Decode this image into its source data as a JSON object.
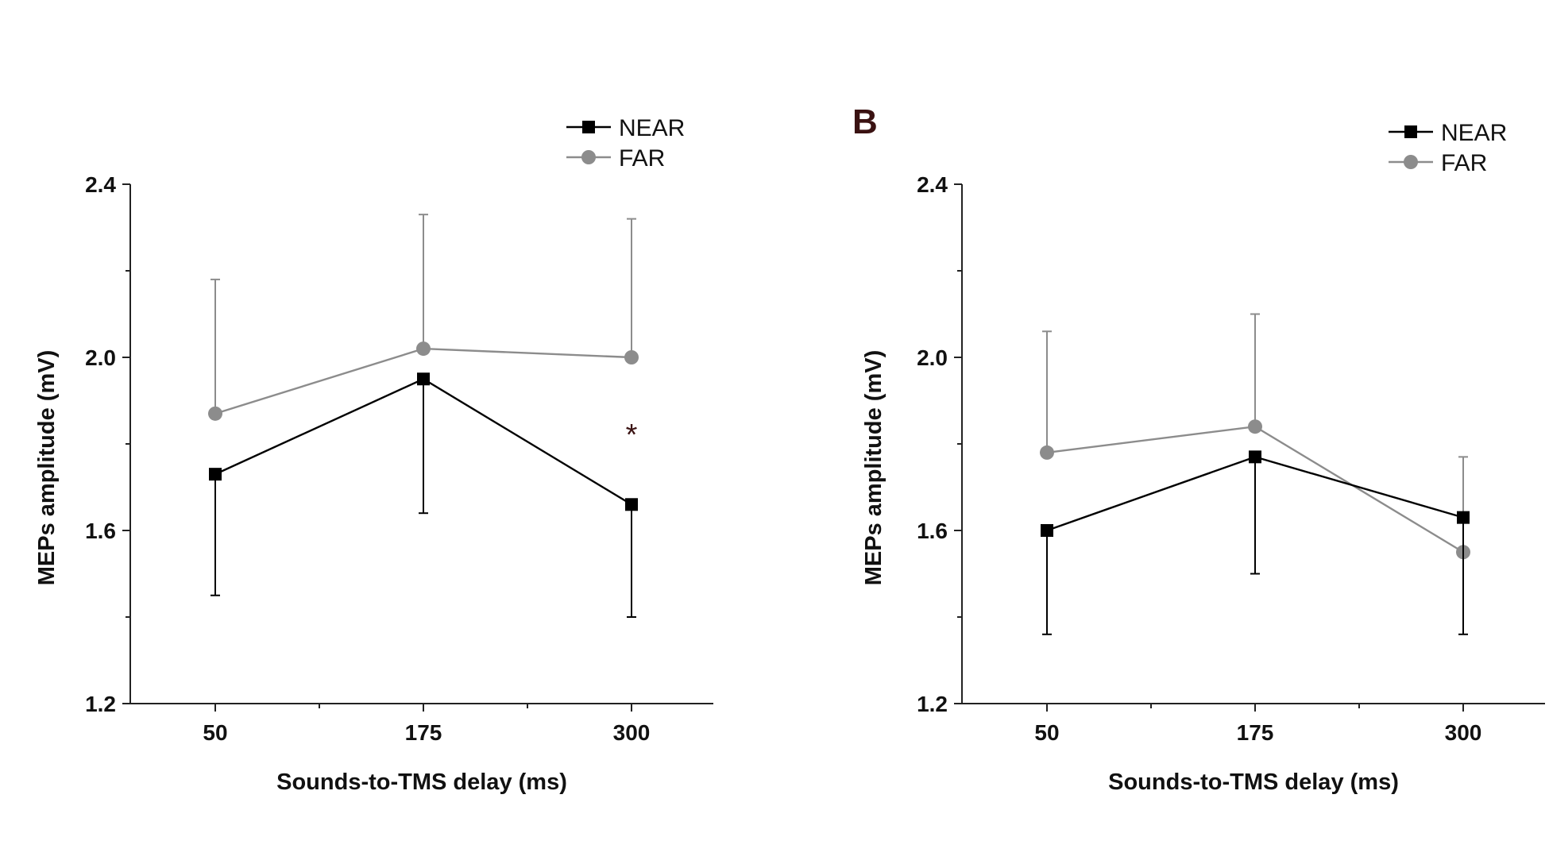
{
  "panels": {
    "a": {
      "label": ""
    },
    "b": {
      "label": "B"
    }
  },
  "chart_data": [
    {
      "type": "line",
      "title": "",
      "xlabel": "Sounds-to-TMS delay (ms)",
      "ylabel": "MEPs amplitude (mV)",
      "categories": [
        "50",
        "175",
        "300"
      ],
      "ylim": [
        1.2,
        2.4
      ],
      "yticks": [
        "1.2",
        "1.6",
        "2.0",
        "2.4"
      ],
      "grid": false,
      "legend": "top-right",
      "annotations": [
        {
          "text": "*",
          "category": "300",
          "y": 1.82
        }
      ],
      "series": [
        {
          "name": "NEAR",
          "color": "#000000",
          "marker": "square",
          "values": [
            1.73,
            1.95,
            1.66
          ],
          "error_low": [
            0.28,
            0.31,
            0.26
          ],
          "error_high": [
            0,
            0,
            0
          ]
        },
        {
          "name": "FAR",
          "color": "#8c8c8c",
          "marker": "circle",
          "values": [
            1.87,
            2.02,
            2.0
          ],
          "error_low": [
            0,
            0,
            0
          ],
          "error_high": [
            0.31,
            0.31,
            0.32
          ]
        }
      ]
    },
    {
      "type": "line",
      "title": "",
      "xlabel": "Sounds-to-TMS delay (ms)",
      "ylabel": "MEPs amplitude (mV)",
      "categories": [
        "50",
        "175",
        "300"
      ],
      "ylim": [
        1.2,
        2.4
      ],
      "yticks": [
        "1.2",
        "1.6",
        "2.0",
        "2.4"
      ],
      "grid": false,
      "legend": "top-right",
      "annotations": [],
      "series": [
        {
          "name": "NEAR",
          "color": "#000000",
          "marker": "square",
          "values": [
            1.6,
            1.77,
            1.63
          ],
          "error_low": [
            0.24,
            0.27,
            0.27
          ],
          "error_high": [
            0,
            0,
            0
          ]
        },
        {
          "name": "FAR",
          "color": "#8c8c8c",
          "marker": "circle",
          "values": [
            1.78,
            1.84,
            1.55
          ],
          "error_low": [
            0,
            0,
            0
          ],
          "error_high": [
            0.28,
            0.26,
            0.22
          ]
        }
      ]
    }
  ]
}
